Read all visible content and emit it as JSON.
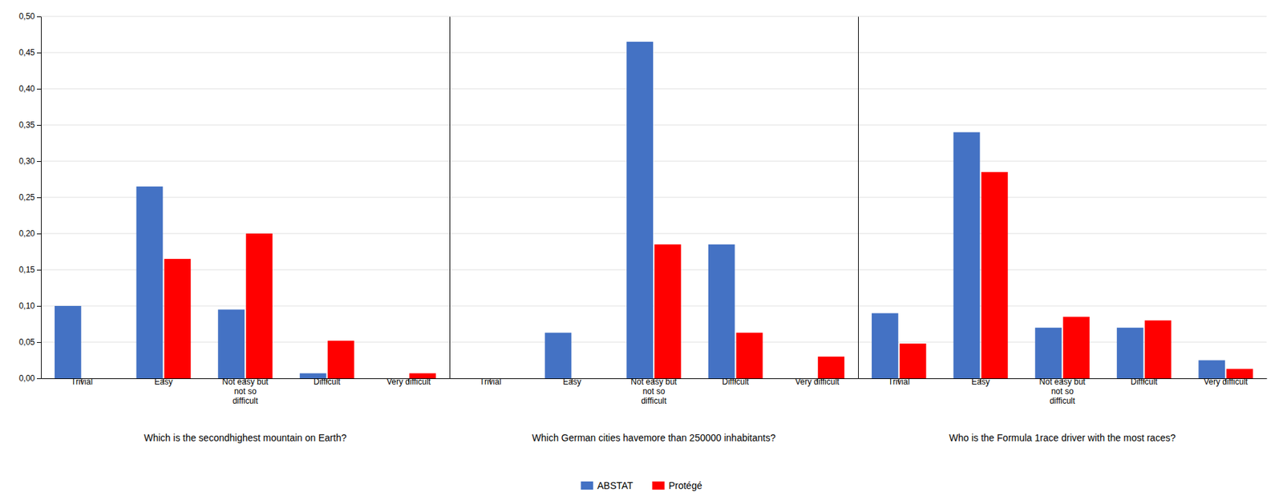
{
  "chart_data": [
    {
      "type": "bar",
      "xlabel": "Which is the secondhighest mountain on Earth?",
      "categories": [
        "Trivial",
        "Easy",
        "Not easy but\nnot so\ndifficult",
        "Difficult",
        "Very difficult"
      ],
      "series": [
        {
          "name": "ABSTAT",
          "color": "#4472C4",
          "values": [
            0.1,
            0.265,
            0.095,
            0.007,
            0.0
          ]
        },
        {
          "name": "Protégé",
          "color": "#FF0000",
          "values": [
            0.0,
            0.165,
            0.2,
            0.052,
            0.007
          ]
        }
      ],
      "ylim": [
        0.0,
        0.5
      ],
      "yticks": [
        {
          "value": 0.0,
          "label": "0,00"
        },
        {
          "value": 0.05,
          "label": "0,05"
        },
        {
          "value": 0.1,
          "label": "0,10"
        },
        {
          "value": 0.15,
          "label": "0,15"
        },
        {
          "value": 0.2,
          "label": "0,20"
        },
        {
          "value": 0.25,
          "label": "0,25"
        },
        {
          "value": 0.3,
          "label": "0,30"
        },
        {
          "value": 0.35,
          "label": "0,35"
        },
        {
          "value": 0.4,
          "label": "0,40"
        },
        {
          "value": 0.45,
          "label": "0,45"
        },
        {
          "value": 0.5,
          "label": "0,50"
        }
      ],
      "grid": true,
      "legend": "bottom"
    },
    {
      "type": "bar",
      "xlabel": "Which German cities havemore than 250000 inhabitants?",
      "categories": [
        "Trivial",
        "Easy",
        "Not easy but\nnot so\ndifficult",
        "Difficult",
        "Very difficult"
      ],
      "series": [
        {
          "color": "#4472C4",
          "values": [
            0.0,
            0.063,
            0.465,
            0.185,
            0.0
          ]
        },
        {
          "color": "#FF0000",
          "values": [
            0.0,
            0.0,
            0.185,
            0.063,
            0.03
          ]
        }
      ],
      "ylim": [
        0.0,
        0.5
      ],
      "yticks": [
        0.0,
        0.05,
        0.1,
        0.15,
        0.2,
        0.25,
        0.3,
        0.35,
        0.4,
        0.45,
        0.5
      ],
      "grid": true,
      "tick_labels": "x"
    },
    {
      "type": "bar",
      "xlabel": "Who is the Formula 1race driver with the most races?",
      "categories": [
        "Trivial",
        "Easy",
        "Not easy but\nnot so\ndifficult",
        "Difficult",
        "Very difficult"
      ],
      "series": [
        {
          "color": "#4472C4",
          "values": [
            0.09,
            0.34,
            0.07,
            0.07,
            0.025
          ]
        },
        {
          "color": "#FF0000",
          "values": [
            0.048,
            0.285,
            0.085,
            0.08,
            0.013
          ]
        }
      ],
      "ylim": [
        0.0,
        0.5
      ],
      "yticks": [
        0.0,
        0.05,
        0.1,
        0.15,
        0.2,
        0.25,
        0.3,
        0.35,
        0.4,
        0.45,
        0.5
      ],
      "grid": true,
      "tick_labels": "x"
    }
  ]
}
